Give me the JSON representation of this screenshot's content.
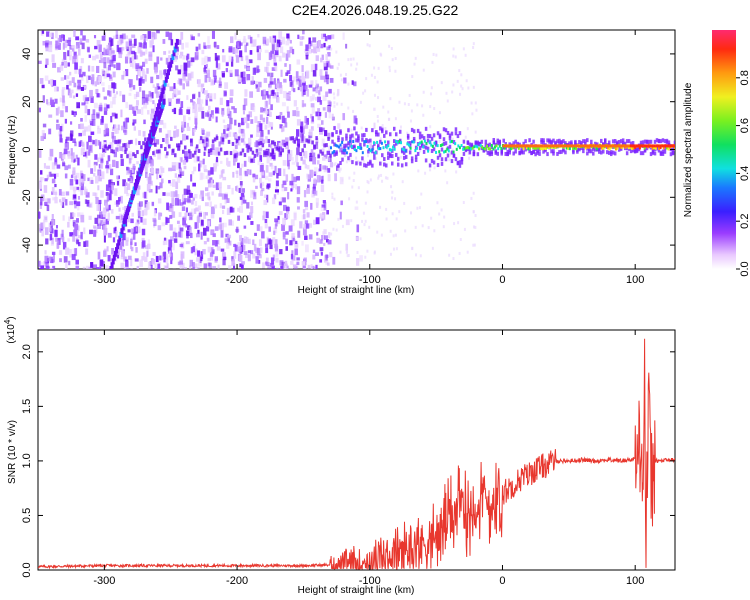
{
  "title": "C2E4.2026.048.19.25.G22",
  "chart_data": [
    {
      "type": "heatmap",
      "xlabel": "Height of straight line (km)",
      "ylabel": "Frequency (Hz)",
      "xlim": [
        -350,
        130
      ],
      "ylim": [
        -50,
        50
      ],
      "x_ticks": [
        -300,
        -200,
        -100,
        0,
        100
      ],
      "y_ticks": [
        -40,
        -20,
        0,
        20,
        40
      ],
      "colorbar": {
        "label": "Normalized spectral amplitude",
        "range": [
          0,
          1
        ],
        "ticks": [
          "0.0",
          "0.2",
          "0.4",
          "0.6",
          "0.8"
        ]
      },
      "features": [
        {
          "desc": "scattered noise",
          "x_range": [
            -350,
            -130
          ],
          "y_range": [
            -50,
            50
          ]
        },
        {
          "desc": "diagonal streak",
          "x": [
            -295,
            -245
          ],
          "y": [
            -50,
            45
          ]
        },
        {
          "desc": "diagonal streak",
          "x": [
            -285,
            -255
          ],
          "y": [
            -30,
            20
          ]
        },
        {
          "desc": "main signal band",
          "x": [
            -130,
            130
          ],
          "y_center": 1,
          "amplitude_max": 1.0
        }
      ]
    },
    {
      "type": "line",
      "xlabel": "Height of straight line (km)",
      "ylabel": "SNR (10 * v/v)",
      "scale_label": "(x10",
      "scale_exponent": "4",
      "xlim": [
        -350,
        130
      ],
      "ylim": [
        0,
        2.2
      ],
      "x_ticks": [
        -300,
        -200,
        -100,
        0,
        100
      ],
      "y_ticks": [
        "0.0",
        "0.5",
        "1.0",
        "1.5",
        "2.0"
      ],
      "color": "#e8372e",
      "x": [
        -350,
        -300,
        -250,
        -200,
        -150,
        -120,
        -100,
        -90,
        -80,
        -70,
        -60,
        -50,
        -45,
        -40,
        -35,
        -30,
        -25,
        -20,
        -15,
        -10,
        -5,
        0,
        5,
        10,
        15,
        20,
        25,
        30,
        35,
        40,
        50,
        60,
        70,
        80,
        90,
        100,
        103,
        105,
        106,
        107,
        108,
        110,
        112,
        115,
        120,
        125,
        130
      ],
      "y": [
        0.03,
        0.04,
        0.04,
        0.04,
        0.04,
        0.05,
        0.08,
        0.1,
        0.15,
        0.2,
        0.25,
        0.3,
        0.4,
        0.5,
        0.55,
        0.6,
        0.55,
        0.6,
        0.65,
        0.6,
        0.65,
        0.7,
        0.75,
        0.8,
        0.85,
        0.88,
        0.92,
        0.95,
        0.97,
        1.0,
        1.0,
        1.01,
        1.0,
        1.01,
        1.0,
        1.02,
        1.1,
        1.4,
        0.5,
        2.1,
        0.2,
        1.5,
        0.8,
        1.0,
        1.0,
        1.01,
        1.01
      ]
    }
  ]
}
